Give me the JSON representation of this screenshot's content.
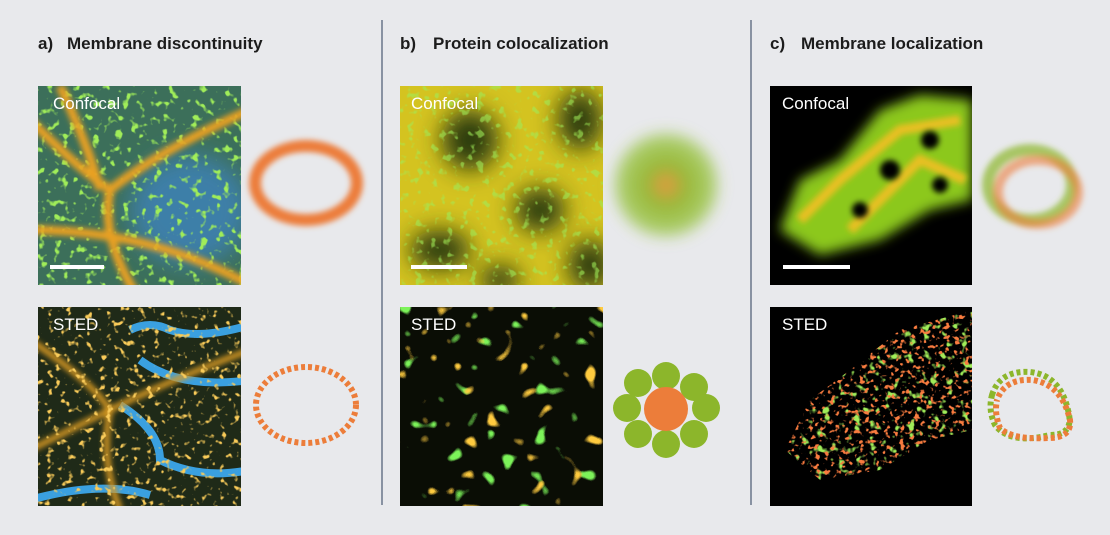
{
  "panels": [
    {
      "label": "a)",
      "title": "Membrane discontinuity",
      "images": [
        "Confocal",
        "STED"
      ]
    },
    {
      "label": "b)",
      "title": "Protein colocalization",
      "images": [
        "Confocal",
        "STED"
      ]
    },
    {
      "label": "c)",
      "title": "Membrane localization",
      "images": [
        "Confocal",
        "STED"
      ]
    }
  ]
}
